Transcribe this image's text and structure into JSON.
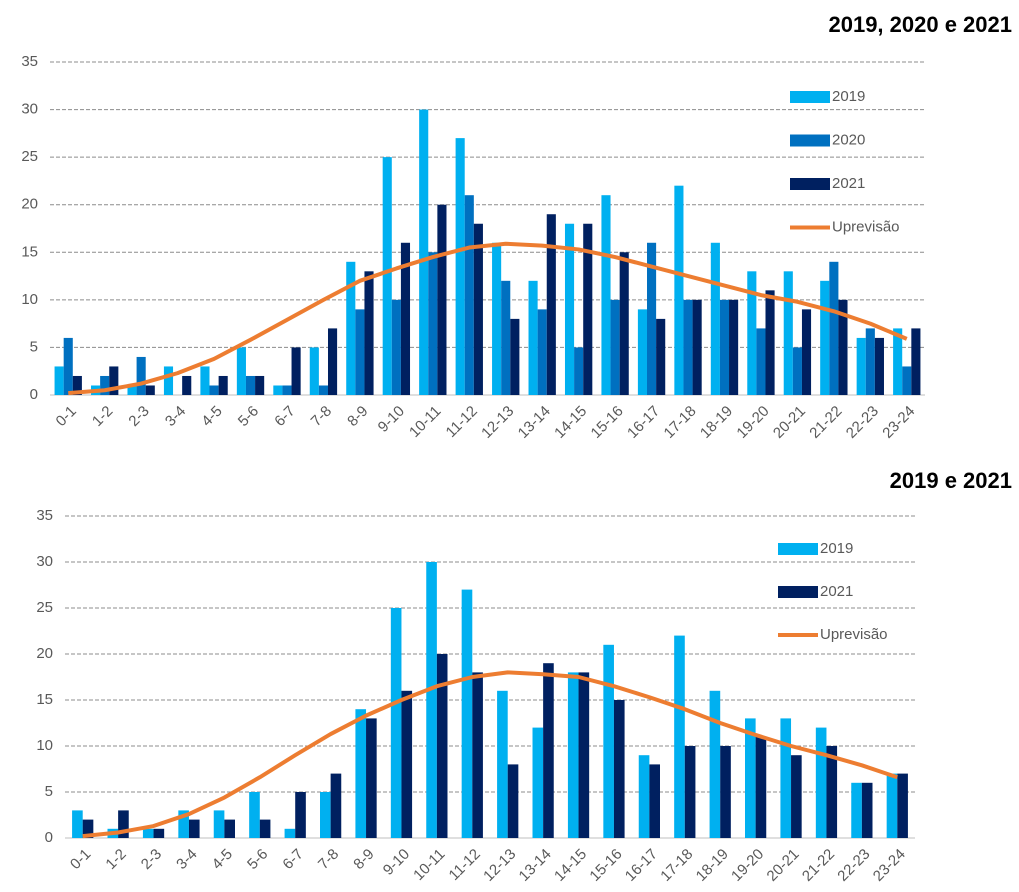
{
  "chart_data": [
    {
      "type": "bar",
      "title": "2019, 2020 e 2021",
      "categories": [
        "0-1",
        "1-2",
        "2-3",
        "3-4",
        "4-5",
        "5-6",
        "6-7",
        "7-8",
        "8-9",
        "9-10",
        "10-11",
        "11-12",
        "12-13",
        "13-14",
        "14-15",
        "15-16",
        "16-17",
        "17-18",
        "18-19",
        "19-20",
        "20-21",
        "21-22",
        "22-23",
        "23-24"
      ],
      "series": [
        {
          "name": "2019",
          "color": "#00b0f0",
          "values": [
            3,
            1,
            1,
            3,
            3,
            5,
            1,
            5,
            14,
            25,
            30,
            27,
            16,
            12,
            18,
            21,
            9,
            22,
            16,
            13,
            13,
            12,
            6,
            7
          ]
        },
        {
          "name": "2020",
          "color": "#0070c0",
          "values": [
            6,
            2,
            4,
            0,
            1,
            2,
            1,
            1,
            9,
            10,
            15,
            21,
            12,
            9,
            5,
            10,
            16,
            10,
            10,
            7,
            5,
            14,
            7,
            3
          ]
        },
        {
          "name": "2021",
          "color": "#002060",
          "values": [
            2,
            3,
            1,
            2,
            2,
            2,
            5,
            7,
            13,
            16,
            20,
            18,
            8,
            19,
            18,
            15,
            8,
            10,
            10,
            11,
            9,
            10,
            6,
            7
          ]
        },
        {
          "name": "Uprevisão",
          "color": "#ed7d31",
          "type": "line",
          "values": [
            0.2,
            0.5,
            1.2,
            2.3,
            3.8,
            5.8,
            7.9,
            10,
            12,
            13.3,
            14.5,
            15.5,
            15.9,
            15.7,
            15.3,
            14.5,
            13.5,
            12.5,
            11.5,
            10.5,
            9.8,
            8.8,
            7.5,
            5.9
          ]
        }
      ],
      "ylim": [
        0,
        35
      ],
      "yticks": [
        0,
        5,
        10,
        15,
        20,
        25,
        30,
        35
      ],
      "grid": true
    },
    {
      "type": "bar",
      "title": "2019 e 2021",
      "categories": [
        "0-1",
        "1-2",
        "2-3",
        "3-4",
        "4-5",
        "5-6",
        "6-7",
        "7-8",
        "8-9",
        "9-10",
        "10-11",
        "11-12",
        "12-13",
        "13-14",
        "14-15",
        "15-16",
        "16-17",
        "17-18",
        "18-19",
        "19-20",
        "20-21",
        "21-22",
        "22-23",
        "23-24"
      ],
      "series": [
        {
          "name": "2019",
          "color": "#00b0f0",
          "values": [
            3,
            1,
            1,
            3,
            3,
            5,
            1,
            5,
            14,
            25,
            30,
            27,
            16,
            12,
            18,
            21,
            9,
            22,
            16,
            13,
            13,
            12,
            6,
            7
          ]
        },
        {
          "name": "2021",
          "color": "#002060",
          "values": [
            2,
            3,
            1,
            2,
            2,
            2,
            5,
            7,
            13,
            16,
            20,
            18,
            8,
            19,
            18,
            15,
            8,
            10,
            10,
            11,
            9,
            10,
            6,
            7
          ]
        },
        {
          "name": "Uprevisão",
          "color": "#ed7d31",
          "type": "line",
          "values": [
            0.2,
            0.6,
            1.3,
            2.6,
            4.4,
            6.6,
            9,
            11.3,
            13.3,
            15,
            16.5,
            17.5,
            18,
            17.8,
            17.5,
            16.5,
            15.3,
            14,
            12.5,
            11.2,
            10,
            9,
            7.9,
            6.6
          ]
        }
      ],
      "ylim": [
        0,
        35
      ],
      "yticks": [
        0,
        5,
        10,
        15,
        20,
        25,
        30,
        35
      ],
      "grid": true
    }
  ]
}
